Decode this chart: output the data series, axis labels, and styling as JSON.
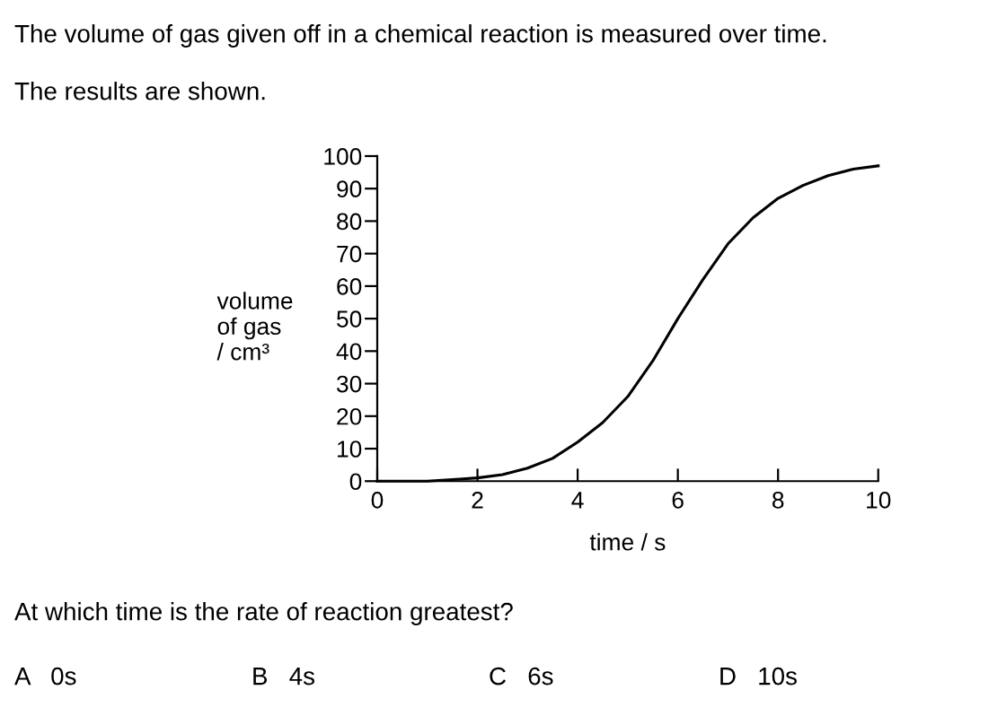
{
  "chart_data": {
    "type": "line",
    "title": "The volume of gas given off in a chemical reaction is measured over time.",
    "subtitle": "The results are shown.",
    "xlabel": "time / s",
    "ylabel": "volume\nof gas\n/ cm³",
    "series": [
      {
        "color": "#000000",
        "x": [
          0,
          1,
          1.5,
          2,
          2.5,
          3,
          3.5,
          4,
          4.5,
          5,
          5.5,
          6,
          6.5,
          7,
          7.5,
          8,
          8.5,
          9,
          9.5,
          10
        ],
        "values": [
          0,
          0,
          0.5,
          1,
          2,
          4,
          7,
          12,
          18,
          26,
          37,
          50,
          62,
          73,
          81,
          87,
          91,
          94,
          96,
          97
        ]
      }
    ],
    "xlim": [
      0,
      10
    ],
    "xticks": [
      0,
      2,
      4,
      6,
      8,
      10
    ],
    "ylim": [
      0,
      100
    ],
    "yticks": [
      0,
      10,
      20,
      30,
      40,
      50,
      60,
      70,
      80,
      90,
      100
    ],
    "grid": false,
    "legend": false,
    "marker": "none",
    "line_style": "solid",
    "annotations": [
      "At which time is the rate of reaction greatest?",
      "A   0s",
      "B   4s",
      "C   6s",
      "D   10s"
    ]
  }
}
